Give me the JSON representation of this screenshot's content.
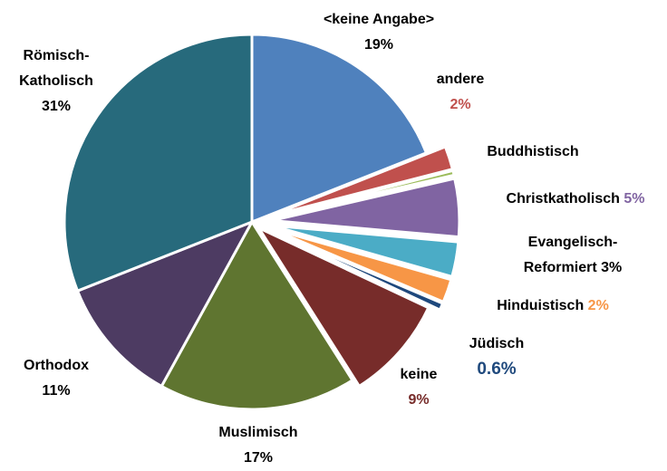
{
  "chart_data": {
    "type": "pie",
    "categories": [
      "<keine Angabe>",
      "andere",
      "Buddhistisch",
      "Christkatholisch",
      "Evangelisch-Reformiert",
      "Hinduistisch",
      "Jüdisch",
      "keine",
      "Muslimisch",
      "Orthodox",
      "Römisch-Katholisch"
    ],
    "values": [
      19,
      2,
      0.4,
      5,
      3,
      2,
      0.6,
      9,
      17,
      11,
      31
    ],
    "value_labels": [
      "19%",
      "2%",
      null,
      "5%",
      "3%",
      "2%",
      "0.6%",
      "9%",
      "17%",
      "11%",
      "31%"
    ],
    "colors": [
      "#4f81bd",
      "#c0504d",
      "#9bbb59",
      "#8064a2",
      "#4bacc6",
      "#f79646",
      "#1f497d",
      "#772c2a",
      "#5f7530",
      "#4d3b62",
      "#276a7c"
    ]
  }
}
